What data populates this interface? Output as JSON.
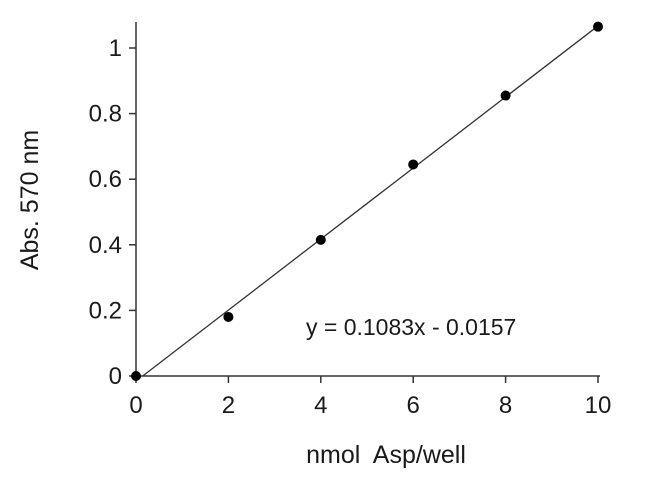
{
  "chart_data": {
    "type": "scatter",
    "title": "",
    "xlabel": "nmol  Asp/well",
    "ylabel": "Abs. 570 nm",
    "xlim": [
      0,
      10
    ],
    "ylim": [
      0,
      1
    ],
    "x_ticks": [
      0,
      2,
      4,
      6,
      8,
      10
    ],
    "y_ticks": [
      0,
      0.2,
      0.4,
      0.6,
      0.8,
      1
    ],
    "grid": false,
    "legend": "none",
    "series": [
      {
        "x": [
          0,
          2,
          4,
          6,
          8,
          10
        ],
        "y": [
          0.0,
          0.18,
          0.415,
          0.645,
          0.855,
          1.065
        ]
      }
    ],
    "trendline": {
      "slope": 0.1083,
      "intercept": -0.0157
    },
    "annotation": "y = 0.1083x - 0.0157"
  }
}
